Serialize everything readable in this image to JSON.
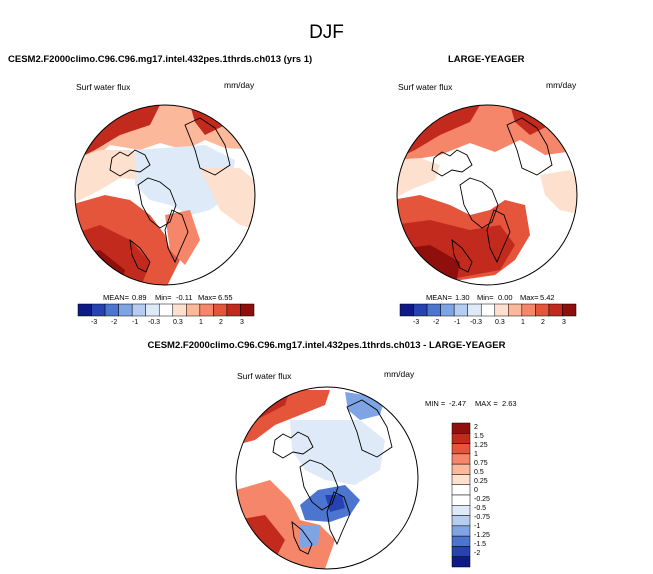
{
  "page_title": "DJF",
  "colors": {
    "red_scale": [
      "#fde0cd",
      "#fbb89a",
      "#f5866a",
      "#e4553c",
      "#c22a1e",
      "#8e0f0b"
    ],
    "blue_scale": [
      "#dfeaf8",
      "#b4cdf0",
      "#7ea4e4",
      "#4c75cf",
      "#2743b2",
      "#0e1a86"
    ],
    "neutral": "#ffffff"
  },
  "chart_data": [
    {
      "type": "heatmap",
      "projection": "north-polar-stereographic",
      "title": "CESM2.F2000climo.C96.C96.mg17.intel.432pes.1thrds.ch013 (yrs 1)",
      "variable_label": "Surf water flux",
      "units": "mm/day",
      "stats": {
        "mean_label": "MEAN=",
        "mean": "0.89",
        "min_label": "Min=",
        "min": "-0.11",
        "max_label": "Max=",
        "max": "6.55"
      },
      "colorbar": {
        "orientation": "horizontal",
        "ticks": [
          "-3",
          "-2",
          "-1",
          "-0.3",
          "0.3",
          "1",
          "2",
          "3"
        ]
      }
    },
    {
      "type": "heatmap",
      "projection": "north-polar-stereographic",
      "title": "LARGE-YEAGER",
      "variable_label": "Surf water flux",
      "units": "mm/day",
      "stats": {
        "mean_label": "MEAN=",
        "mean": "1.30",
        "min_label": "Min=",
        "min": "0.00",
        "max_label": "Max=",
        "max": "5.42"
      },
      "colorbar": {
        "orientation": "horizontal",
        "ticks": [
          "-3",
          "-2",
          "-1",
          "-0.3",
          "0.3",
          "1",
          "2",
          "3"
        ]
      }
    },
    {
      "type": "heatmap",
      "projection": "north-polar-stereographic",
      "title": "CESM2.F2000climo.C96.C96.mg17.intel.432pes.1thrds.ch013 - LARGE-YEAGER",
      "variable_label": "Surf water flux",
      "units": "mm/day",
      "stats": {
        "min_label": "MIN =",
        "min": "-2.47",
        "max_label": "MAX =",
        "max": "2.63"
      },
      "colorbar": {
        "orientation": "vertical",
        "ticks": [
          "2",
          "1.5",
          "1.25",
          "1",
          "0.75",
          "0.5",
          "0.25",
          "0",
          "-0.25",
          "-0.5",
          "-0.75",
          "-1",
          "-1.25",
          "-1.5",
          "-2"
        ]
      }
    }
  ]
}
